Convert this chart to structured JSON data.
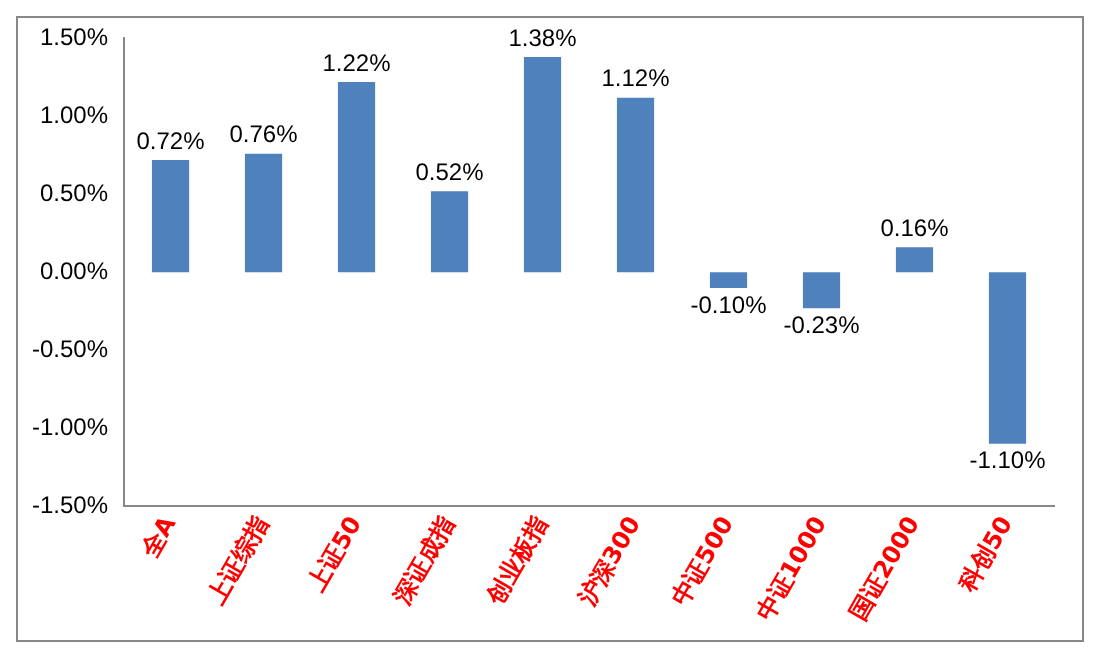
{
  "chart_data": {
    "type": "bar",
    "categories": [
      "全A",
      "上证综指",
      "上证50",
      "深证成指",
      "创业板指",
      "沪深300",
      "中证500",
      "中证1000",
      "国证2000",
      "科创50"
    ],
    "values": [
      0.72,
      0.76,
      1.22,
      0.52,
      1.38,
      1.12,
      -0.1,
      -0.23,
      0.16,
      -1.1
    ],
    "value_labels": [
      "0.72%",
      "0.76%",
      "1.22%",
      "0.52%",
      "1.38%",
      "1.12%",
      "-0.10%",
      "-0.23%",
      "0.16%",
      "-1.10%"
    ],
    "color": "#4f81bd",
    "ylim": [
      -1.5,
      1.5
    ],
    "yticks": [
      {
        "value": -1.5,
        "label": "-1.50%"
      },
      {
        "value": -1.0,
        "label": "-1.00%"
      },
      {
        "value": -0.5,
        "label": "-0.50%"
      },
      {
        "value": 0,
        "label": "0.00%"
      },
      {
        "value": 0.5,
        "label": "0.50%"
      },
      {
        "value": 1.0,
        "label": "1.00%"
      },
      {
        "value": 1.5,
        "label": "1.50%"
      }
    ],
    "grid": false,
    "legend": false
  }
}
